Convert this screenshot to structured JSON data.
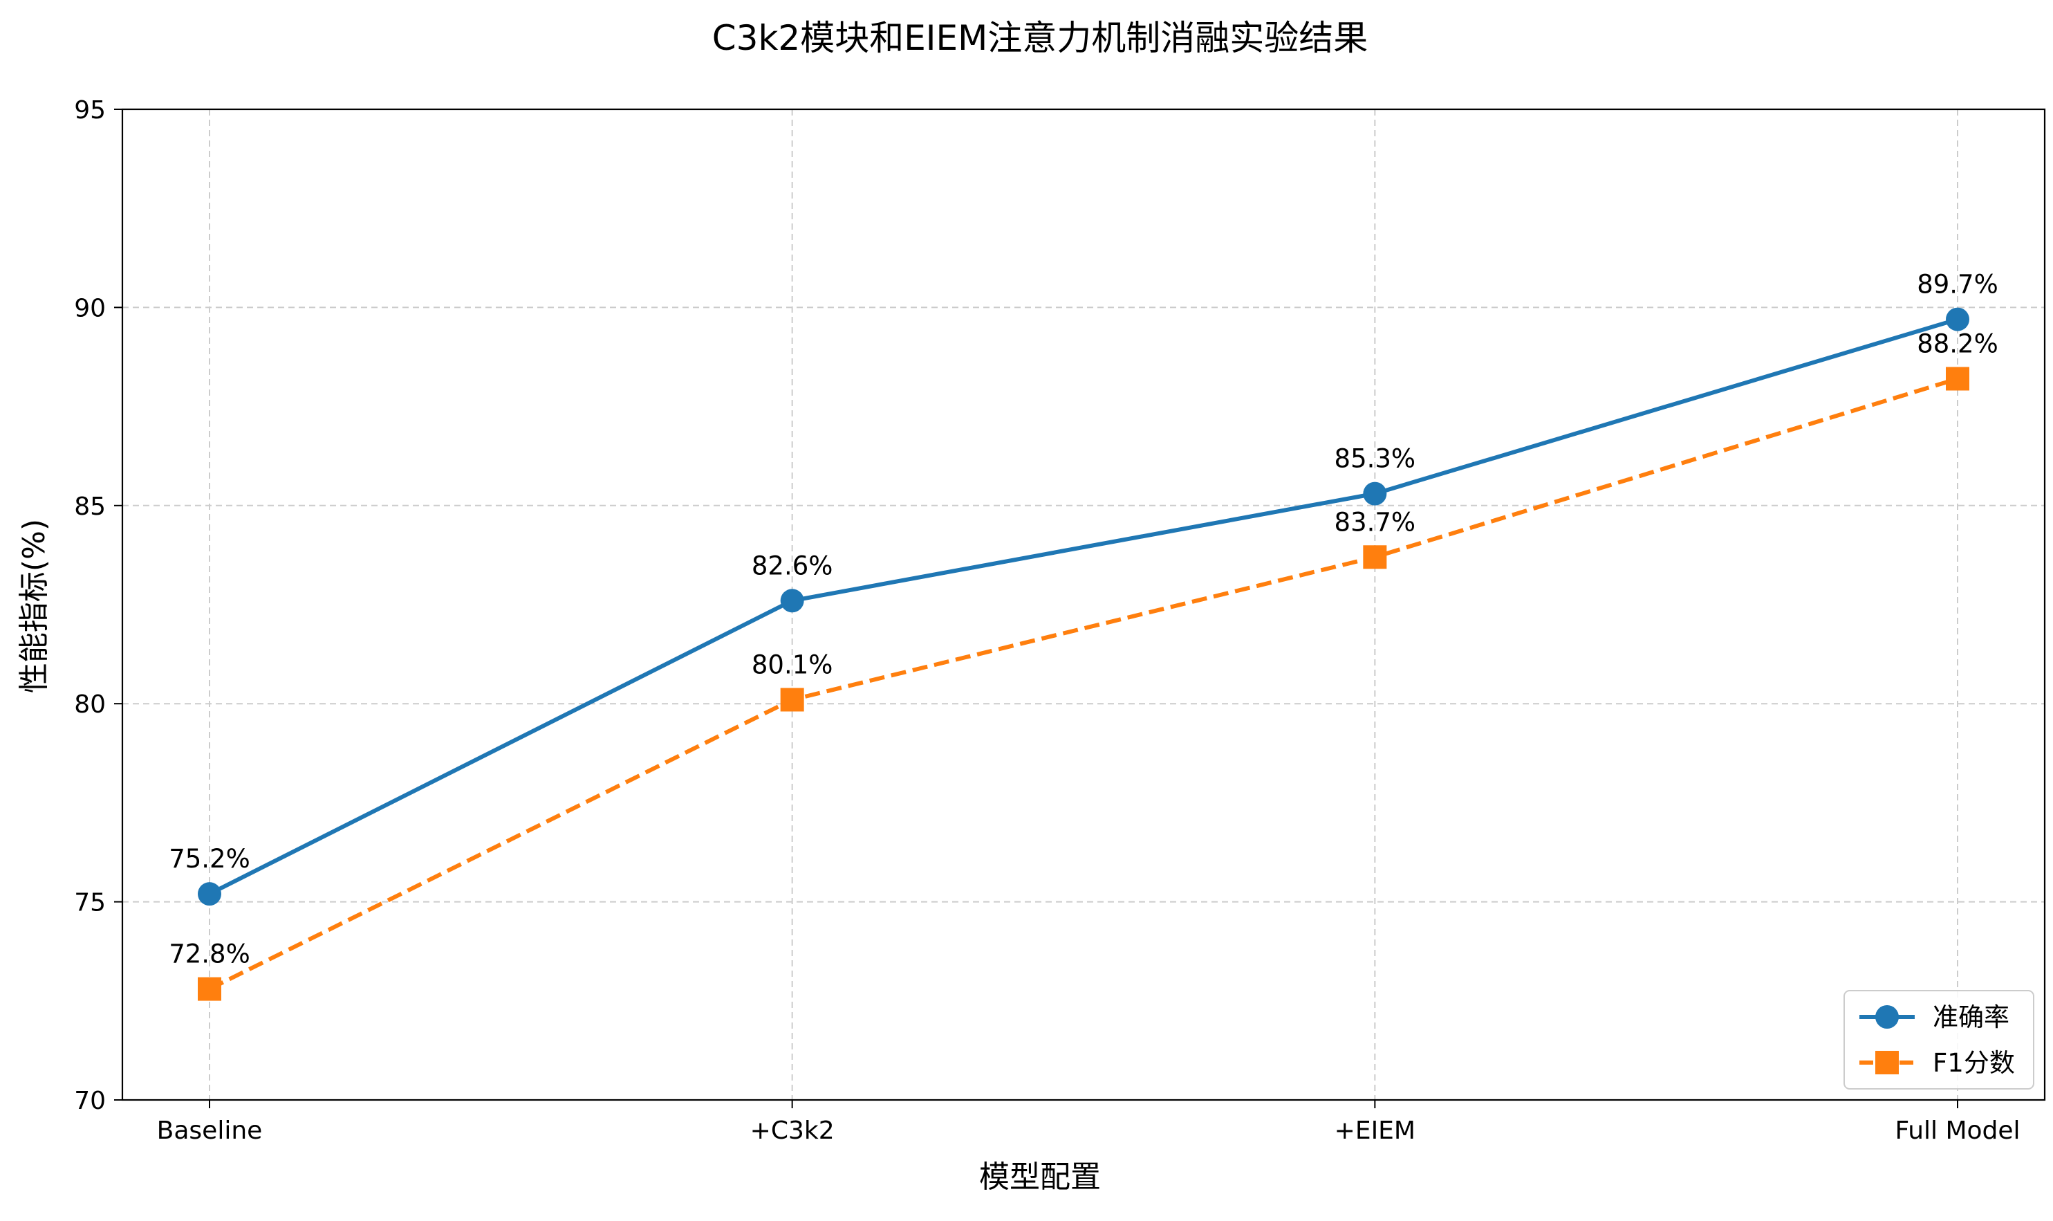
{
  "chart_data": {
    "type": "line",
    "title": "C3k2模块和EIEM注意力机制消融实验结果",
    "xlabel": "模型配置",
    "ylabel": "性能指标(%)",
    "categories": [
      "Baseline",
      "+C3k2",
      "+EIEM",
      "Full Model"
    ],
    "ylim": [
      70,
      95
    ],
    "yticks": [
      70,
      75,
      80,
      85,
      90,
      95
    ],
    "grid": true,
    "legend_position": "lower-right",
    "series": [
      {
        "name": "准确率",
        "values": [
          75.2,
          82.6,
          85.3,
          89.7
        ],
        "labels": [
          "75.2%",
          "82.6%",
          "85.3%",
          "89.7%"
        ],
        "color": "#1f77b4",
        "line_style": "solid",
        "marker": "circle"
      },
      {
        "name": "F1分数",
        "values": [
          72.8,
          80.1,
          83.7,
          88.2
        ],
        "labels": [
          "72.8%",
          "80.1%",
          "83.7%",
          "88.2%"
        ],
        "color": "#ff7f0e",
        "line_style": "dashed",
        "marker": "square"
      }
    ]
  }
}
